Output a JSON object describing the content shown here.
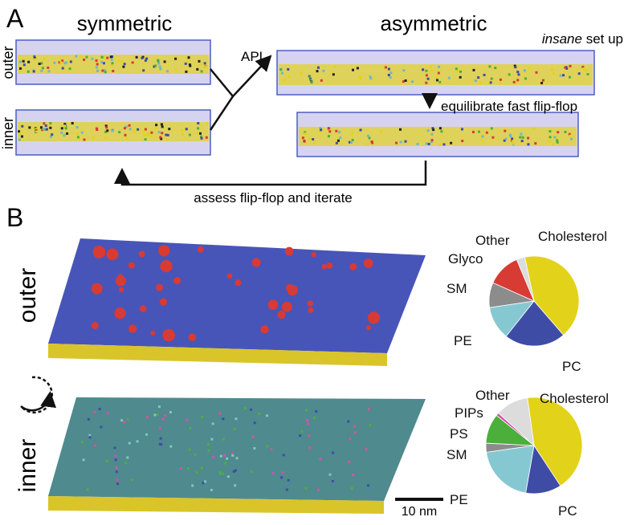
{
  "panel_a": {
    "label": "A",
    "symmetric": "symmetric",
    "asymmetric": "asymmetric",
    "outer": "outer",
    "inner": "inner",
    "apl": "APL",
    "insane": "insane",
    "setup": "set up",
    "equilibrate": "equilibrate fast flip-flop",
    "assess": "assess flip-flop and iterate"
  },
  "panel_b": {
    "label": "B",
    "outer": "outer",
    "inner": "inner",
    "scale_bar": "10 nm"
  },
  "chart_data": [
    {
      "type": "pie",
      "categories": [
        "Cholesterol",
        "PC",
        "PE",
        "SM",
        "Glyco",
        "Other"
      ],
      "values": [
        42,
        22,
        12,
        9,
        12,
        3
      ],
      "colors": [
        "#e3d21a",
        "#3f4ca6",
        "#86c8d2",
        "#8c8c8c",
        "#d83a34",
        "#dcdcdc"
      ]
    },
    {
      "type": "pie",
      "categories": [
        "Cholesterol",
        "PC",
        "PE",
        "SM",
        "PS",
        "PIPs",
        "Other"
      ],
      "values": [
        43,
        12,
        20,
        3,
        10,
        1,
        11
      ],
      "colors": [
        "#e3d21a",
        "#3f4ca6",
        "#86c8d2",
        "#8c8c8c",
        "#4caf3c",
        "#d651a8",
        "#dcdcdc"
      ]
    }
  ]
}
